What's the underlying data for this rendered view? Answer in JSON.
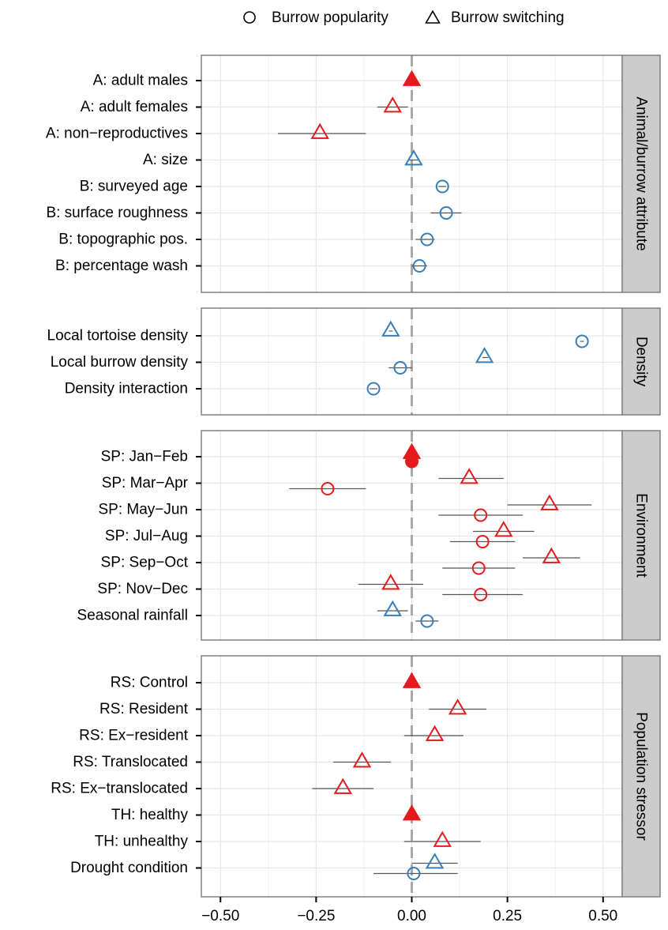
{
  "chart_data": {
    "type": "scatter",
    "legend": {
      "placement": "top",
      "items": [
        {
          "label": "Burrow popularity",
          "shape": "circle"
        },
        {
          "label": "Burrow switching",
          "shape": "triangle"
        }
      ]
    },
    "x_ticks": [
      "−0.50",
      "−0.25",
      "0.00",
      "0.25",
      "0.50"
    ],
    "x_tick_values": [
      -0.5,
      -0.25,
      0,
      0.25,
      0.5
    ],
    "xlim": [
      -0.55,
      0.55
    ],
    "grid": true,
    "reference_line": 0,
    "colors": {
      "reference": "#e41a1c",
      "other": "#377eb8",
      "ref_line": "#aaaaaa",
      "strip": "#cccccc",
      "panel_border": "#808080"
    },
    "panels": [
      {
        "name": "Animal/burrow attribute",
        "rows": [
          {
            "label": "A: adult males",
            "points": [
              {
                "shape": "triangle",
                "x": 0.0,
                "group": "reference",
                "filled": true
              }
            ]
          },
          {
            "label": "A: adult females",
            "points": [
              {
                "shape": "triangle",
                "x": -0.05,
                "lo": -0.09,
                "hi": -0.01,
                "group": "reference"
              }
            ]
          },
          {
            "label": "A: non−reproductives",
            "points": [
              {
                "shape": "triangle",
                "x": -0.24,
                "lo": -0.35,
                "hi": -0.12,
                "group": "reference"
              }
            ]
          },
          {
            "label": "A: size",
            "points": [
              {
                "shape": "triangle",
                "x": 0.005,
                "lo": -0.01,
                "hi": 0.02,
                "group": "other"
              }
            ]
          },
          {
            "label": "B: surveyed age",
            "points": [
              {
                "shape": "circle",
                "x": 0.08,
                "lo": 0.07,
                "hi": 0.09,
                "group": "other"
              }
            ]
          },
          {
            "label": "B: surface roughness",
            "points": [
              {
                "shape": "circle",
                "x": 0.09,
                "lo": 0.05,
                "hi": 0.13,
                "group": "other"
              }
            ]
          },
          {
            "label": "B: topographic pos.",
            "points": [
              {
                "shape": "circle",
                "x": 0.04,
                "lo": 0.01,
                "hi": 0.06,
                "group": "other"
              }
            ]
          },
          {
            "label": "B: percentage wash",
            "points": [
              {
                "shape": "circle",
                "x": 0.02,
                "lo": 0.0,
                "hi": 0.04,
                "group": "other"
              }
            ]
          }
        ]
      },
      {
        "name": "Density",
        "rows": [
          {
            "label": "Local tortoise density",
            "points": [
              {
                "shape": "triangle",
                "x": -0.055,
                "lo": -0.06,
                "hi": -0.05,
                "group": "other"
              },
              {
                "shape": "circle",
                "x": 0.445,
                "lo": 0.44,
                "hi": 0.45,
                "group": "other"
              }
            ]
          },
          {
            "label": "Local burrow density",
            "points": [
              {
                "shape": "triangle",
                "x": 0.19,
                "lo": 0.185,
                "hi": 0.2,
                "group": "other"
              },
              {
                "shape": "circle",
                "x": -0.03,
                "lo": -0.06,
                "hi": 0.0,
                "group": "other"
              }
            ]
          },
          {
            "label": "Density interaction",
            "points": [
              {
                "shape": "circle",
                "x": -0.1,
                "lo": -0.11,
                "hi": -0.09,
                "group": "other"
              }
            ]
          }
        ]
      },
      {
        "name": "Environment",
        "rows": [
          {
            "label": "SP: Jan−Feb",
            "points": [
              {
                "shape": "triangle",
                "x": 0.0,
                "group": "reference",
                "filled": true
              },
              {
                "shape": "circle",
                "x": 0.0,
                "group": "reference",
                "filled": true
              }
            ]
          },
          {
            "label": "SP: Mar−Apr",
            "points": [
              {
                "shape": "triangle",
                "x": 0.15,
                "lo": 0.07,
                "hi": 0.24,
                "group": "reference"
              },
              {
                "shape": "circle",
                "x": -0.22,
                "lo": -0.32,
                "hi": -0.12,
                "group": "reference"
              }
            ]
          },
          {
            "label": "SP: May−Jun",
            "points": [
              {
                "shape": "triangle",
                "x": 0.36,
                "lo": 0.25,
                "hi": 0.47,
                "group": "reference"
              },
              {
                "shape": "circle",
                "x": 0.18,
                "lo": 0.07,
                "hi": 0.29,
                "group": "reference"
              }
            ]
          },
          {
            "label": "SP: Jul−Aug",
            "points": [
              {
                "shape": "triangle",
                "x": 0.24,
                "lo": 0.16,
                "hi": 0.32,
                "group": "reference"
              },
              {
                "shape": "circle",
                "x": 0.185,
                "lo": 0.1,
                "hi": 0.27,
                "group": "reference"
              }
            ]
          },
          {
            "label": "SP: Sep−Oct",
            "points": [
              {
                "shape": "triangle",
                "x": 0.365,
                "lo": 0.29,
                "hi": 0.44,
                "group": "reference"
              },
              {
                "shape": "circle",
                "x": 0.175,
                "lo": 0.08,
                "hi": 0.27,
                "group": "reference"
              }
            ]
          },
          {
            "label": "SP: Nov−Dec",
            "points": [
              {
                "shape": "triangle",
                "x": -0.055,
                "lo": -0.14,
                "hi": 0.03,
                "group": "reference"
              },
              {
                "shape": "circle",
                "x": 0.18,
                "lo": 0.08,
                "hi": 0.29,
                "group": "reference"
              }
            ]
          },
          {
            "label": "Seasonal rainfall",
            "points": [
              {
                "shape": "triangle",
                "x": -0.05,
                "lo": -0.09,
                "hi": -0.01,
                "group": "other"
              },
              {
                "shape": "circle",
                "x": 0.04,
                "lo": 0.01,
                "hi": 0.07,
                "group": "other"
              }
            ]
          }
        ]
      },
      {
        "name": "Population stressor",
        "rows": [
          {
            "label": "RS: Control",
            "points": [
              {
                "shape": "triangle",
                "x": 0.0,
                "group": "reference",
                "filled": true
              }
            ]
          },
          {
            "label": "RS: Resident",
            "points": [
              {
                "shape": "triangle",
                "x": 0.12,
                "lo": 0.045,
                "hi": 0.195,
                "group": "reference"
              }
            ]
          },
          {
            "label": "RS: Ex−resident",
            "points": [
              {
                "shape": "triangle",
                "x": 0.06,
                "lo": -0.02,
                "hi": 0.135,
                "group": "reference"
              }
            ]
          },
          {
            "label": "RS: Translocated",
            "points": [
              {
                "shape": "triangle",
                "x": -0.13,
                "lo": -0.205,
                "hi": -0.055,
                "group": "reference"
              }
            ]
          },
          {
            "label": "RS: Ex−translocated",
            "points": [
              {
                "shape": "triangle",
                "x": -0.18,
                "lo": -0.26,
                "hi": -0.1,
                "group": "reference"
              }
            ]
          },
          {
            "label": "TH: healthy",
            "points": [
              {
                "shape": "triangle",
                "x": 0.0,
                "group": "reference",
                "filled": true
              }
            ]
          },
          {
            "label": "TH: unhealthy",
            "points": [
              {
                "shape": "triangle",
                "x": 0.08,
                "lo": -0.02,
                "hi": 0.18,
                "group": "reference"
              }
            ]
          },
          {
            "label": "Drought condition",
            "points": [
              {
                "shape": "triangle",
                "x": 0.06,
                "lo": 0.0,
                "hi": 0.12,
                "group": "other"
              },
              {
                "shape": "circle",
                "x": 0.005,
                "lo": -0.1,
                "hi": 0.12,
                "group": "other"
              }
            ]
          }
        ]
      }
    ]
  }
}
